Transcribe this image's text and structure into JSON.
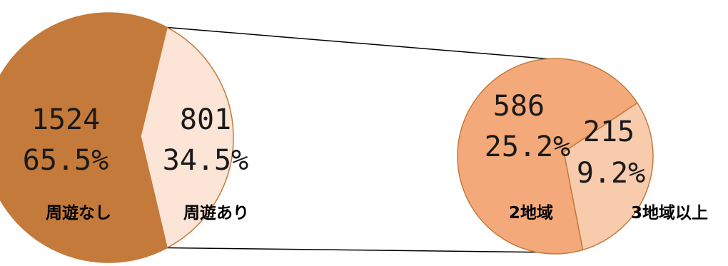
{
  "chart_data": [
    {
      "type": "pie",
      "categories": [
        "周遊なし",
        "周遊あり"
      ],
      "values": [
        1524,
        801
      ],
      "percent_labels": [
        "65.5%",
        "34.5%"
      ],
      "value_labels": [
        "1524",
        "801"
      ],
      "colors": [
        "#C47A3A",
        "#FCE4D6"
      ]
    },
    {
      "type": "pie",
      "categories": [
        "2地域",
        "3地域以上"
      ],
      "values": [
        586,
        215
      ],
      "percent_labels": [
        "25.2%",
        "9.2%"
      ],
      "value_labels": [
        "586",
        "215"
      ],
      "colors": [
        "#F4A97A",
        "#F8CBAD"
      ]
    }
  ]
}
